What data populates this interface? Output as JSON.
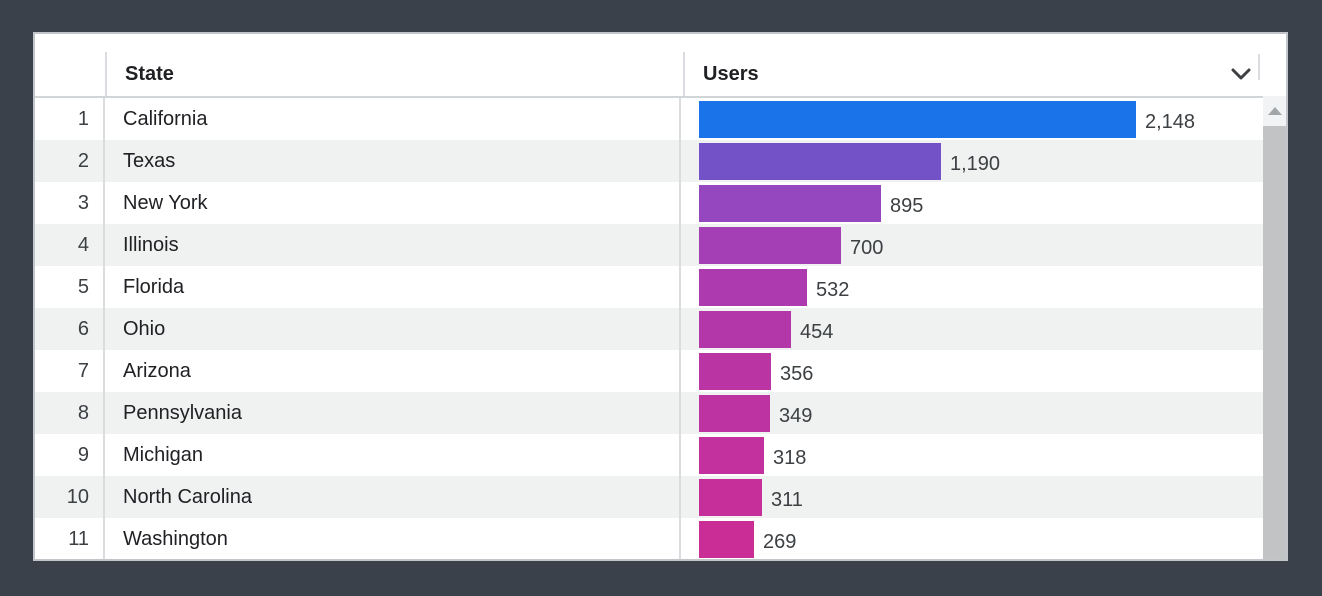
{
  "table": {
    "header": {
      "state_label": "State",
      "users_label": "Users"
    },
    "rows": [
      {
        "rank": "1",
        "state": "California",
        "users": 2148,
        "users_label": "2,148",
        "bar_color": "#1A73E8"
      },
      {
        "rank": "2",
        "state": "Texas",
        "users": 1190,
        "users_label": "1,190",
        "bar_color": "#7351C6"
      },
      {
        "rank": "3",
        "state": "New York",
        "users": 895,
        "users_label": "895",
        "bar_color": "#9447BE"
      },
      {
        "rank": "4",
        "state": "Illinois",
        "users": 700,
        "users_label": "700",
        "bar_color": "#A43FB6"
      },
      {
        "rank": "5",
        "state": "Florida",
        "users": 532,
        "users_label": "532",
        "bar_color": "#AE3AAF"
      },
      {
        "rank": "6",
        "state": "Ohio",
        "users": 454,
        "users_label": "454",
        "bar_color": "#B437A9"
      },
      {
        "rank": "7",
        "state": "Arizona",
        "users": 356,
        "users_label": "356",
        "bar_color": "#BB34A4"
      },
      {
        "rank": "8",
        "state": "Pennsylvania",
        "users": 349,
        "users_label": "349",
        "bar_color": "#BE33A2"
      },
      {
        "rank": "9",
        "state": "Michigan",
        "users": 318,
        "users_label": "318",
        "bar_color": "#C2319E"
      },
      {
        "rank": "10",
        "state": "North Carolina",
        "users": 311,
        "users_label": "311",
        "bar_color": "#C62F9A"
      },
      {
        "rank": "11",
        "state": "Washington",
        "users": 269,
        "users_label": "269",
        "bar_color": "#CB2D96"
      }
    ]
  },
  "colors": {
    "page_background": "#3A414A",
    "row_alt_background": "#F0F1F1",
    "divider": "#DADCE0",
    "top_bar_color": "#1A73E8",
    "bottom_bar_color": "#CB2D96"
  },
  "chart_data": {
    "type": "bar",
    "orientation": "horizontal",
    "title": "",
    "xlabel": "Users",
    "ylabel": "State",
    "categories": [
      "California",
      "Texas",
      "New York",
      "Illinois",
      "Florida",
      "Ohio",
      "Arizona",
      "Pennsylvania",
      "Michigan",
      "North Carolina",
      "Washington"
    ],
    "values": [
      2148,
      1190,
      895,
      700,
      532,
      454,
      356,
      349,
      318,
      311,
      269
    ],
    "value_labels": [
      "2,148",
      "1,190",
      "895",
      "700",
      "532",
      "454",
      "356",
      "349",
      "318",
      "311",
      "269"
    ],
    "bar_colors": [
      "#1A73E8",
      "#7351C6",
      "#9447BE",
      "#A43FB6",
      "#AE3AAF",
      "#B437A9",
      "#BB34A4",
      "#BE33A2",
      "#C2319E",
      "#C62F9A",
      "#CB2D96"
    ],
    "xlim": [
      0,
      2148
    ],
    "grid": false,
    "legend": false,
    "data_labels": "at_bar_end"
  }
}
